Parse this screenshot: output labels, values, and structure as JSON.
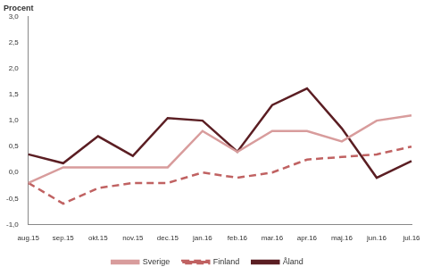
{
  "chart_data": {
    "type": "line",
    "y_label": "Procent",
    "categories": [
      "aug.15",
      "sep.15",
      "okt.15",
      "nov.15",
      "dec.15",
      "jan.16",
      "feb.16",
      "mar.16",
      "apr.16",
      "maj.16",
      "jun.16",
      "jul.16"
    ],
    "series": [
      {
        "name": "Sverige",
        "color": "#d89c9c",
        "line_style": "solid",
        "values": [
          -0.2,
          0.1,
          0.1,
          0.1,
          0.1,
          0.8,
          0.4,
          0.8,
          0.8,
          0.6,
          1.0,
          1.1
        ]
      },
      {
        "name": "Finland",
        "color": "#c06262",
        "line_style": "dashed",
        "values": [
          -0.2,
          -0.6,
          -0.3,
          -0.2,
          -0.2,
          0.0,
          -0.1,
          0.0,
          0.25,
          0.3,
          0.35,
          0.5
        ]
      },
      {
        "name": "Åland",
        "color": "#5b1e23",
        "line_style": "solid",
        "values": [
          0.35,
          0.18,
          0.7,
          0.32,
          1.05,
          1.0,
          0.4,
          1.3,
          1.62,
          0.85,
          -0.1,
          0.22
        ]
      }
    ],
    "ylim": [
      -1.0,
      3.0
    ],
    "yticks": [
      {
        "value": -1.0,
        "label": "-1,0"
      },
      {
        "value": -0.5,
        "label": "-0,5"
      },
      {
        "value": 0,
        "label": "0,0"
      },
      {
        "value": 0.5,
        "label": "0,5"
      },
      {
        "value": 1.0,
        "label": "1,0"
      },
      {
        "value": 1.5,
        "label": "1,5"
      },
      {
        "value": 2.0,
        "label": "2,0"
      },
      {
        "value": 2.5,
        "label": "2,5"
      },
      {
        "value": 3.0,
        "label": "3,0"
      }
    ],
    "grid": false,
    "legend": "bottom"
  }
}
